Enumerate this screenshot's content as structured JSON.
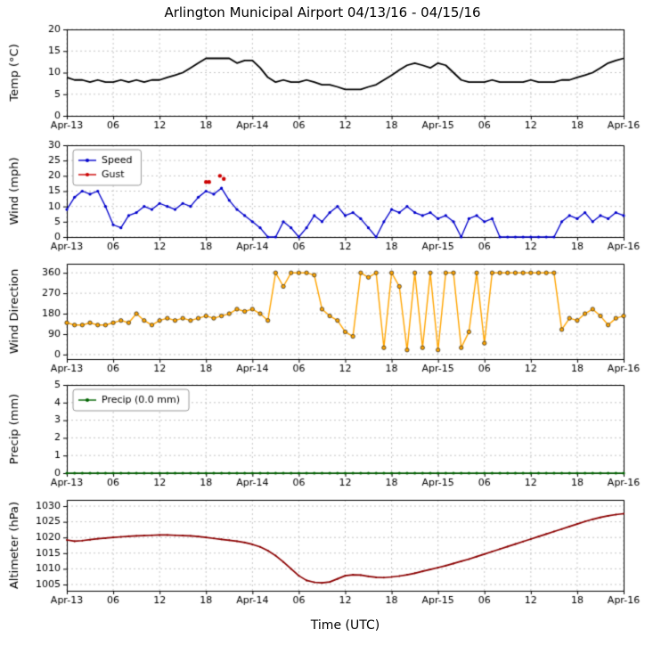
{
  "meta": {
    "title": "Arlington Municipal Airport 04/13/16 - 04/15/16",
    "xlabel": "Time (UTC)"
  },
  "colors": {
    "temp": "#000000",
    "speed": "#0000cc",
    "gust": "#cc0000",
    "wind_dir": "#ffa500",
    "precip": "#006400",
    "altimeter": "#8b0000",
    "grid": "#b8b8b8",
    "frame": "#000000",
    "legend_edge": "#999999"
  },
  "axis": {
    "x_range": [
      0,
      72
    ],
    "x_ticks": [
      0,
      6,
      12,
      18,
      24,
      30,
      36,
      42,
      48,
      54,
      60,
      66,
      72
    ],
    "x_ticklabels": [
      "Apr-13",
      "06",
      "12",
      "18",
      "Apr-14",
      "06",
      "12",
      "18",
      "Apr-15",
      "06",
      "12",
      "18",
      "Apr-16"
    ]
  },
  "chart_data": [
    {
      "type": "line",
      "ylabel": "Temp (°C)",
      "ylim": [
        0,
        20
      ],
      "yticks": [
        0,
        5,
        10,
        15,
        20
      ],
      "legend": null,
      "series": [
        {
          "name": "Temp",
          "color_key": "temp",
          "lw": 1.8,
          "marker_r": 0,
          "values": [
            8.9,
            8.3,
            8.3,
            7.8,
            8.3,
            7.8,
            7.8,
            8.3,
            7.8,
            8.3,
            7.8,
            8.3,
            8.3,
            8.9,
            9.4,
            10.0,
            11.1,
            12.2,
            13.3,
            13.3,
            13.3,
            13.3,
            12.2,
            12.8,
            12.8,
            11.1,
            8.9,
            7.8,
            8.3,
            7.8,
            7.8,
            8.3,
            7.8,
            7.2,
            7.2,
            6.7,
            6.1,
            6.1,
            6.1,
            6.7,
            7.2,
            8.3,
            9.4,
            10.6,
            11.7,
            12.2,
            11.7,
            11.1,
            12.2,
            11.7,
            10.0,
            8.3,
            7.8,
            7.8,
            7.8,
            8.3,
            7.8,
            7.8,
            7.8,
            7.8,
            8.3,
            7.8,
            7.8,
            7.8,
            8.3,
            8.3,
            8.9,
            9.4,
            10.0,
            11.1,
            12.2,
            12.8,
            13.3
          ]
        }
      ]
    },
    {
      "type": "line",
      "ylabel": "Wind (mph)",
      "ylim": [
        0,
        30
      ],
      "yticks": [
        0,
        5,
        10,
        15,
        20,
        25,
        30
      ],
      "legend": {
        "entries": [
          {
            "label": "Speed",
            "color_key": "speed"
          },
          {
            "label": "Gust",
            "color_key": "gust"
          }
        ]
      },
      "series": [
        {
          "name": "Speed",
          "color_key": "speed",
          "lw": 1.3,
          "marker_r": 1.6,
          "values": [
            9,
            13,
            15,
            14,
            15,
            10,
            4,
            3,
            7,
            8,
            10,
            9,
            11,
            10,
            9,
            11,
            10,
            13,
            15,
            14,
            16,
            12,
            9,
            7,
            5,
            3,
            0,
            0,
            5,
            3,
            0,
            3,
            7,
            5,
            8,
            10,
            7,
            8,
            6,
            3,
            0,
            5,
            9,
            8,
            10,
            8,
            7,
            8,
            6,
            7,
            5,
            0,
            6,
            7,
            5,
            6,
            0,
            0,
            0,
            0,
            0,
            0,
            0,
            0,
            5,
            7,
            6,
            8,
            5,
            7,
            6,
            8,
            7
          ]
        },
        {
          "name": "Gust",
          "color_key": "gust",
          "lw": 0,
          "marker_r": 2.2,
          "x": [
            18,
            18.4,
            19.8,
            20.3
          ],
          "values": [
            18,
            18,
            20,
            19
          ]
        }
      ]
    },
    {
      "type": "line",
      "ylabel": "Wind Direction",
      "ylim": [
        -20,
        400
      ],
      "yticks": [
        0,
        90,
        180,
        270,
        360
      ],
      "legend": null,
      "series": [
        {
          "name": "Wind Direction",
          "color_key": "wind_dir",
          "lw": 1.4,
          "marker_r": 2.2,
          "marker_edge": true,
          "values": [
            140,
            130,
            130,
            140,
            130,
            130,
            140,
            150,
            140,
            180,
            150,
            130,
            150,
            160,
            150,
            160,
            150,
            160,
            170,
            160,
            170,
            180,
            200,
            190,
            200,
            180,
            150,
            360,
            300,
            360,
            360,
            360,
            350,
            200,
            170,
            150,
            100,
            80,
            360,
            340,
            360,
            30,
            360,
            300,
            20,
            360,
            30,
            360,
            20,
            360,
            360,
            30,
            100,
            360,
            50,
            360,
            360,
            360,
            360,
            360,
            360,
            360,
            360,
            360,
            110,
            160,
            150,
            180,
            200,
            170,
            130,
            160,
            170
          ]
        }
      ]
    },
    {
      "type": "line",
      "ylabel": "Precip (mm)",
      "ylim": [
        0,
        5
      ],
      "yticks": [
        0,
        1,
        2,
        3,
        4,
        5
      ],
      "legend": {
        "entries": [
          {
            "label": "Precip (0.0 mm)",
            "color_key": "precip"
          }
        ]
      },
      "series": [
        {
          "name": "Precip",
          "color_key": "precip",
          "lw": 1.6,
          "marker_r": 1.6,
          "values": [
            0,
            0,
            0,
            0,
            0,
            0,
            0,
            0,
            0,
            0,
            0,
            0,
            0,
            0,
            0,
            0,
            0,
            0,
            0,
            0,
            0,
            0,
            0,
            0,
            0,
            0,
            0,
            0,
            0,
            0,
            0,
            0,
            0,
            0,
            0,
            0,
            0,
            0,
            0,
            0,
            0,
            0,
            0,
            0,
            0,
            0,
            0,
            0,
            0,
            0,
            0,
            0,
            0,
            0,
            0,
            0,
            0,
            0,
            0,
            0,
            0,
            0,
            0,
            0,
            0,
            0,
            0,
            0,
            0,
            0,
            0,
            0,
            0
          ]
        }
      ]
    },
    {
      "type": "line",
      "ylabel": "Altimeter (hPa)",
      "ylim": [
        1003,
        1032
      ],
      "yticks": [
        1005,
        1010,
        1015,
        1020,
        1025,
        1030
      ],
      "legend": null,
      "series": [
        {
          "name": "Altimeter",
          "color_key": "altimeter",
          "lw": 1.7,
          "marker_r": 1.0,
          "values": [
            1019.2,
            1018.8,
            1019.0,
            1019.3,
            1019.6,
            1019.8,
            1020.0,
            1020.2,
            1020.4,
            1020.5,
            1020.6,
            1020.7,
            1020.8,
            1020.8,
            1020.7,
            1020.6,
            1020.5,
            1020.3,
            1020.0,
            1019.7,
            1019.4,
            1019.1,
            1018.8,
            1018.4,
            1017.8,
            1017.0,
            1015.8,
            1014.2,
            1012.2,
            1010.0,
            1007.8,
            1006.3,
            1005.7,
            1005.5,
            1005.8,
            1006.8,
            1007.8,
            1008.1,
            1008.0,
            1007.6,
            1007.3,
            1007.2,
            1007.4,
            1007.7,
            1008.1,
            1008.6,
            1009.2,
            1009.8,
            1010.4,
            1011.0,
            1011.7,
            1012.4,
            1013.1,
            1013.9,
            1014.7,
            1015.5,
            1016.3,
            1017.1,
            1017.9,
            1018.7,
            1019.5,
            1020.3,
            1021.1,
            1021.9,
            1022.7,
            1023.5,
            1024.3,
            1025.1,
            1025.8,
            1026.4,
            1026.9,
            1027.3,
            1027.6
          ]
        }
      ]
    }
  ]
}
